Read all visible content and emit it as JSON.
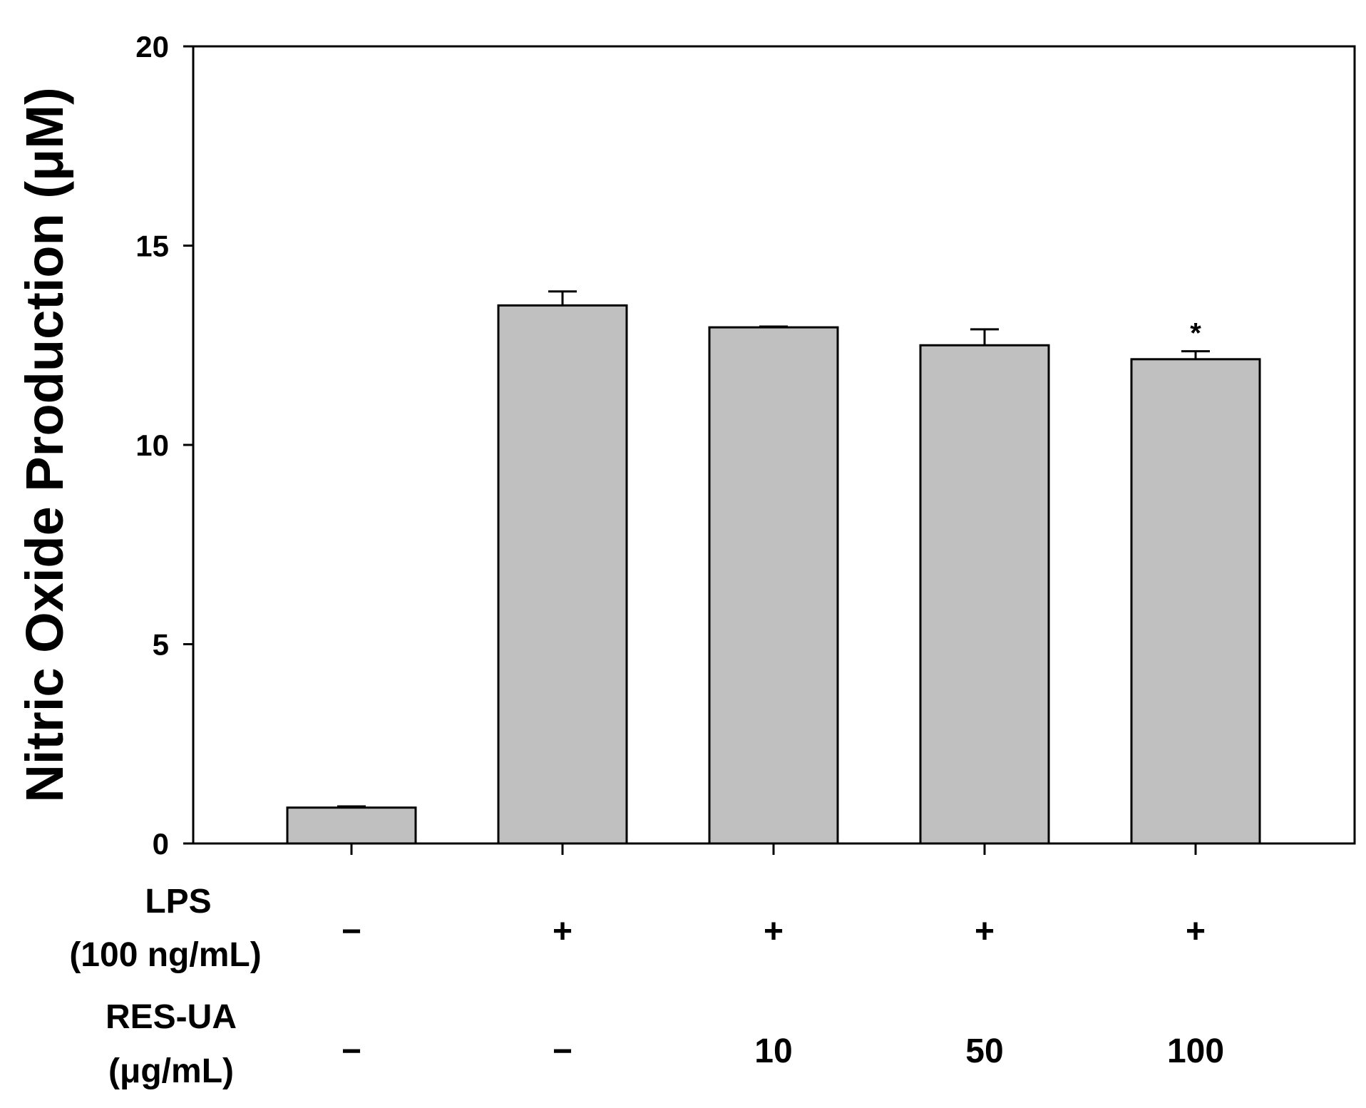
{
  "chart_data": {
    "type": "bar",
    "title": "",
    "xlabel": "",
    "ylabel": "Nitric Oxide Production (μM)",
    "ylim": [
      0,
      20
    ],
    "yticks": [
      "0",
      "5",
      "10",
      "15",
      "20"
    ],
    "grid": false,
    "bar_color": "#c0c0c0",
    "categories": [
      "LPS − / RES-UA −",
      "LPS + / RES-UA −",
      "LPS + / RES-UA 10",
      "LPS + / RES-UA 50",
      "LPS + / RES-UA 100"
    ],
    "values": [
      0.9,
      13.5,
      12.95,
      12.5,
      12.15
    ],
    "errors": [
      0.03,
      0.35,
      0.02,
      0.4,
      0.2
    ],
    "significance": [
      "",
      "",
      "",
      "",
      "*"
    ],
    "condition_rows": [
      {
        "label_line1": "LPS",
        "label_line2": "(100 ng/mL)",
        "values": [
          "−",
          "+",
          "+",
          "+",
          "+"
        ]
      },
      {
        "label_line1": "RES-UA",
        "label_line2": "(μg/mL)",
        "values": [
          "−",
          "−",
          "10",
          "50",
          "100"
        ]
      }
    ]
  }
}
